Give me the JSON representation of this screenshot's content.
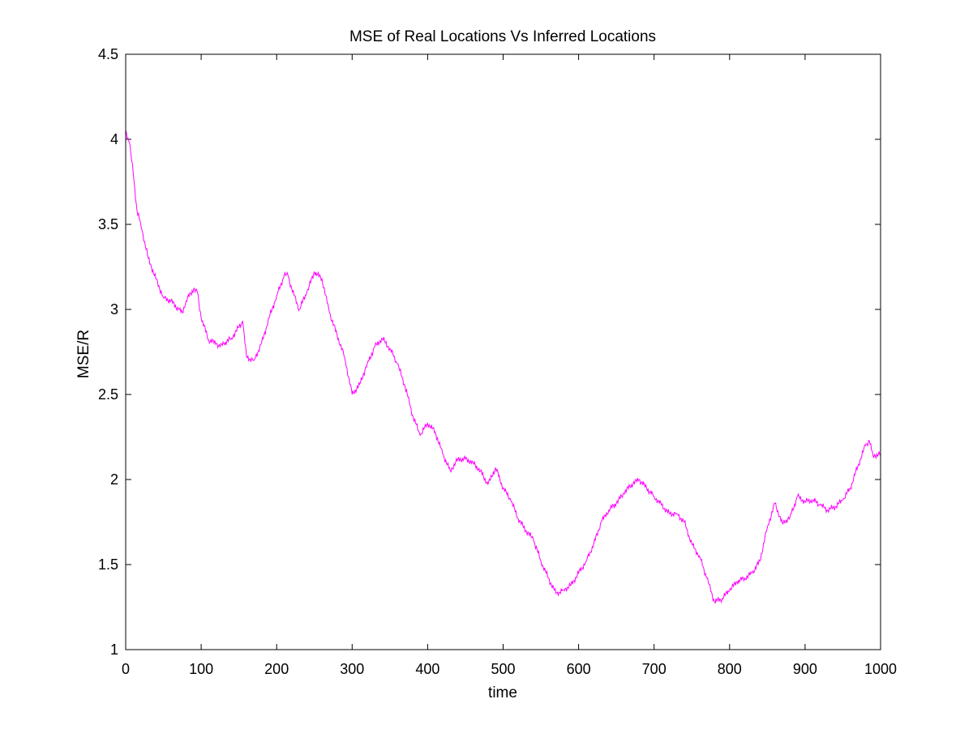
{
  "chart_data": {
    "type": "line",
    "title": "MSE of Real Locations Vs Inferred Locations",
    "xlabel": "time",
    "ylabel": "MSE/R",
    "xlim": [
      0,
      1000
    ],
    "ylim": [
      1,
      4.5
    ],
    "grid": false,
    "x_ticks": [
      0,
      100,
      200,
      300,
      400,
      500,
      600,
      700,
      800,
      900,
      1000
    ],
    "y_ticks": [
      1,
      1.5,
      2,
      2.5,
      3,
      3.5,
      4,
      4.5
    ],
    "x_tick_labels": [
      "0",
      "100",
      "200",
      "300",
      "400",
      "500",
      "600",
      "700",
      "800",
      "900",
      "1000"
    ],
    "y_tick_labels": [
      "1",
      "1.5",
      "2",
      "2.5",
      "3",
      "3.5",
      "4",
      "4.5"
    ],
    "series": [
      {
        "color": "#ff00ff",
        "x": [
          0,
          5,
          10,
          15,
          20,
          25,
          30,
          40,
          50,
          60,
          70,
          75,
          80,
          90,
          95,
          100,
          110,
          120,
          125,
          130,
          140,
          155,
          160,
          170,
          180,
          190,
          200,
          210,
          215,
          220,
          230,
          240,
          250,
          260,
          270,
          280,
          290,
          300,
          310,
          320,
          330,
          340,
          350,
          360,
          370,
          380,
          390,
          400,
          410,
          420,
          430,
          440,
          450,
          460,
          470,
          480,
          490,
          500,
          510,
          520,
          530,
          540,
          550,
          560,
          570,
          580,
          590,
          600,
          610,
          620,
          630,
          640,
          650,
          660,
          670,
          680,
          690,
          700,
          710,
          720,
          730,
          740,
          750,
          760,
          770,
          780,
          790,
          800,
          810,
          820,
          830,
          840,
          850,
          860,
          870,
          880,
          890,
          900,
          910,
          920,
          930,
          940,
          950,
          960,
          970,
          980,
          985,
          990,
          1000
        ],
        "y": [
          4.05,
          3.98,
          3.8,
          3.58,
          3.5,
          3.4,
          3.3,
          3.18,
          3.07,
          3.05,
          3.0,
          2.98,
          3.05,
          3.12,
          3.1,
          2.95,
          2.82,
          2.8,
          2.78,
          2.8,
          2.83,
          2.93,
          2.72,
          2.7,
          2.8,
          2.95,
          3.08,
          3.2,
          3.2,
          3.12,
          3.0,
          3.1,
          3.22,
          3.18,
          2.98,
          2.85,
          2.72,
          2.5,
          2.56,
          2.68,
          2.78,
          2.83,
          2.77,
          2.68,
          2.55,
          2.38,
          2.26,
          2.33,
          2.28,
          2.15,
          2.05,
          2.12,
          2.12,
          2.1,
          2.05,
          1.97,
          2.07,
          1.95,
          1.88,
          1.77,
          1.7,
          1.65,
          1.52,
          1.42,
          1.33,
          1.35,
          1.38,
          1.45,
          1.52,
          1.62,
          1.75,
          1.82,
          1.86,
          1.92,
          1.97,
          2.0,
          1.95,
          1.9,
          1.85,
          1.8,
          1.8,
          1.75,
          1.62,
          1.55,
          1.42,
          1.28,
          1.3,
          1.35,
          1.4,
          1.42,
          1.45,
          1.52,
          1.72,
          1.86,
          1.74,
          1.78,
          1.9,
          1.87,
          1.88,
          1.85,
          1.82,
          1.84,
          1.88,
          1.95,
          2.08,
          2.2,
          2.23,
          2.14,
          2.15
        ]
      }
    ]
  }
}
